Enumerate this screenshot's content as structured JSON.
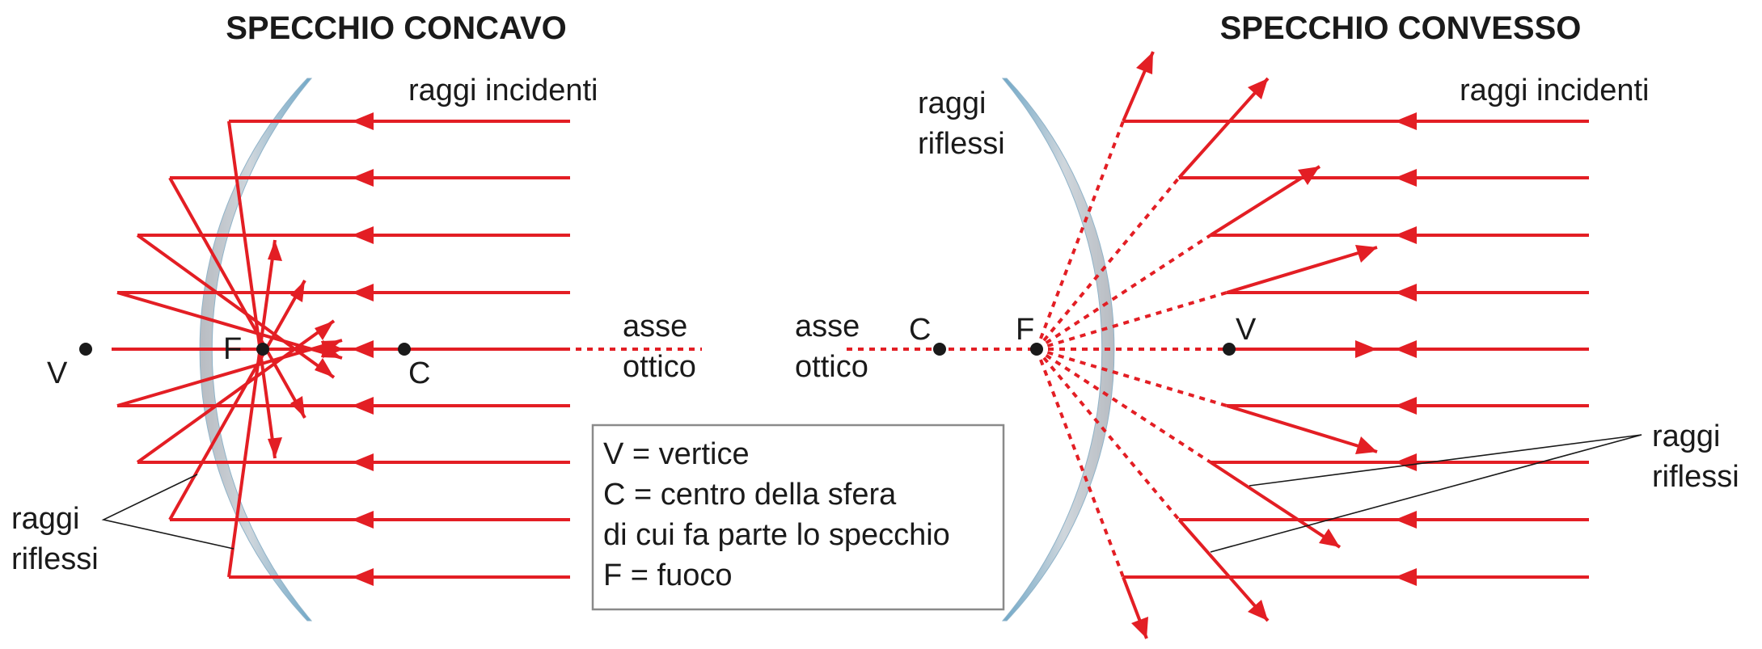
{
  "concave": {
    "title": "SPECCHIO CONCAVO",
    "incident_label": "raggi incidenti",
    "reflected_label_1": "raggi",
    "reflected_label_2": "riflessi",
    "axis_label_1": "asse",
    "axis_label_2": "ottico",
    "vertex": "V",
    "focus": "F",
    "center": "C"
  },
  "convex": {
    "title": "SPECCHIO CONVESSO",
    "incident_label": "raggi incidenti",
    "reflected_top_1": "raggi",
    "reflected_top_2": "riflessi",
    "reflected_bottom_1": "raggi",
    "reflected_bottom_2": "riflessi",
    "axis_label_1": "asse",
    "axis_label_2": "ottico",
    "vertex": "V",
    "focus": "F",
    "center": "C"
  },
  "legend": {
    "line1": "V = vertice",
    "line2": "C = centro della sfera",
    "line3": "di cui fa parte lo specchio",
    "line4": "F = fuoco"
  },
  "colors": {
    "ray": "#e31e24",
    "mirror_blue": "#6fa8c8",
    "mirror_grey": "#c9ccd1"
  }
}
